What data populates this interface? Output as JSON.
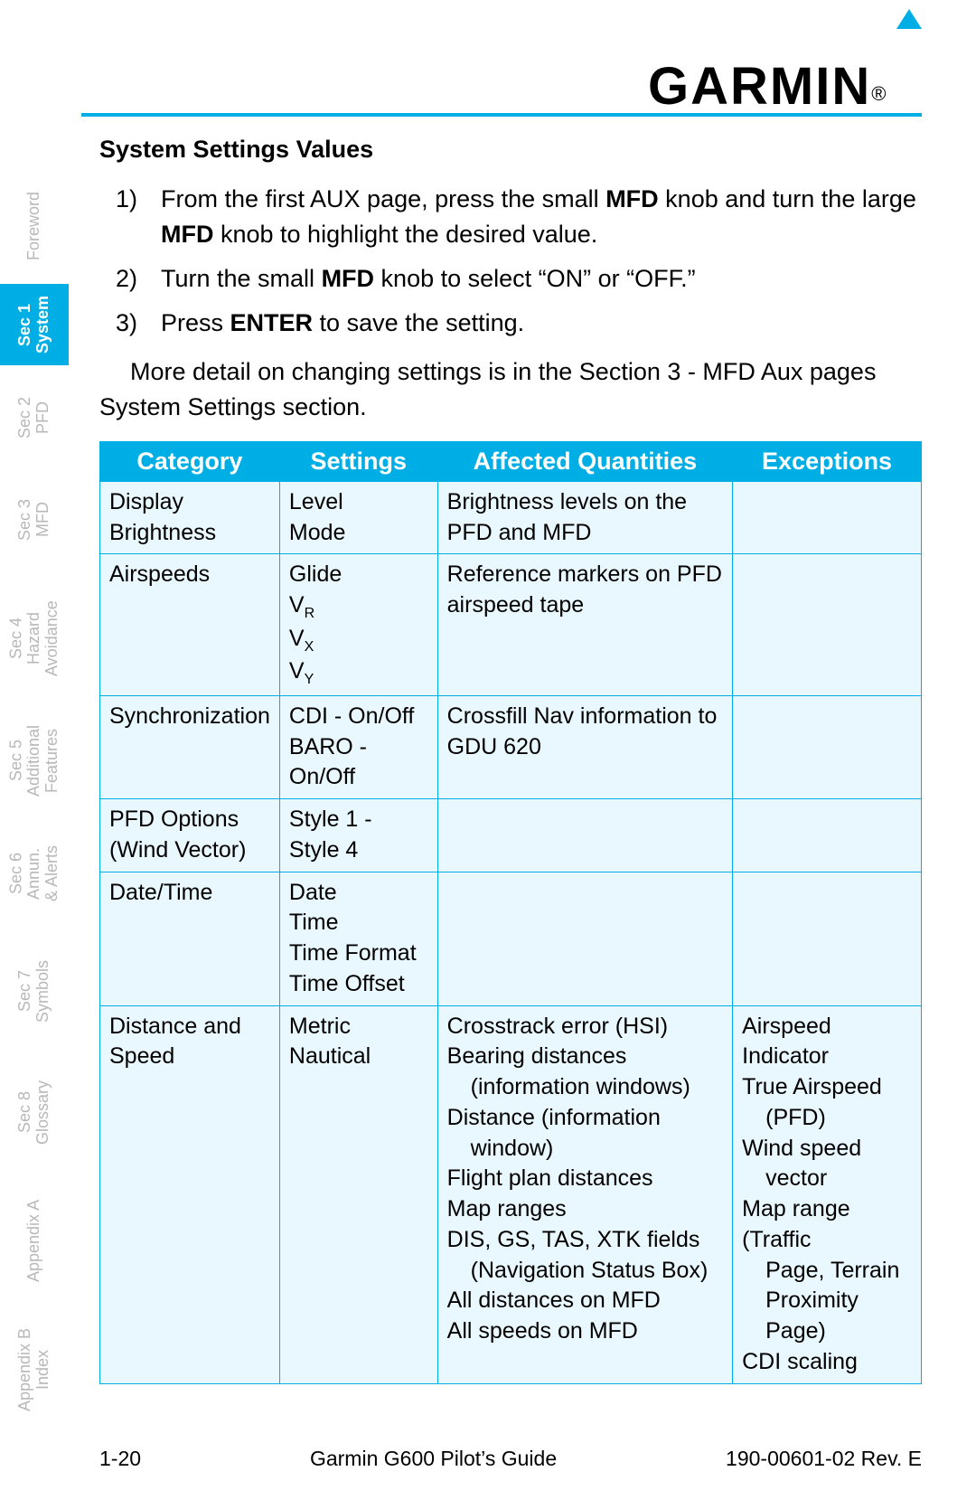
{
  "brand": {
    "name": "GARMIN",
    "registered": "®"
  },
  "title": "System Settings Values",
  "steps": [
    {
      "n": "1)",
      "text_parts": [
        "From the first AUX page, press the small ",
        "MFD",
        " knob and turn the large ",
        "MFD",
        " knob to highlight the desired value."
      ]
    },
    {
      "n": "2)",
      "text_parts": [
        "Turn the small ",
        "MFD",
        " knob to select “ON” or “OFF.”"
      ]
    },
    {
      "n": "3)",
      "text_parts": [
        "Press ",
        "ENTER",
        " to save the setting."
      ]
    }
  ],
  "paragraph": "More detail on changing settings is in the Section 3 - MFD Aux pages System Settings section.",
  "table": {
    "header_bg": "#00aee6",
    "header_fg": "#ffffff",
    "cell_bg": "#e9f7fe",
    "border_color": "#00aee6",
    "columns": [
      "Category",
      "Settings",
      "Affected Quantities",
      "Exceptions"
    ],
    "rows": [
      {
        "category": "Display Brightness",
        "settings": "Level\nMode",
        "affected": "Brightness levels on the PFD and MFD",
        "exceptions": ""
      },
      {
        "category": "Airspeeds",
        "settings_rich": [
          "Glide",
          [
            "V",
            "R"
          ],
          [
            "V",
            "X"
          ],
          [
            "V",
            "Y"
          ]
        ],
        "affected": "Reference markers on PFD airspeed tape",
        "exceptions": ""
      },
      {
        "category": "Synchronization",
        "settings": "CDI - On/Off\nBARO - On/Off",
        "affected": "Crossfill Nav information to GDU 620",
        "exceptions": ""
      },
      {
        "category": "PFD Options (Wind Vector)",
        "settings": "Style 1 - Style 4",
        "affected": "",
        "exceptions": ""
      },
      {
        "category": "Date/Time",
        "settings": "Date\nTime\nTime Format\nTime Offset",
        "affected": "",
        "exceptions": ""
      },
      {
        "category": "Distance and Speed",
        "settings": "Metric\nNautical",
        "affected_lines": [
          "Crosstrack error (HSI)",
          "Bearing distances",
          {
            "indent": "(information windows)"
          },
          "Distance (information",
          {
            "indent": "window)"
          },
          "Flight plan distances",
          "Map ranges",
          "DIS, GS, TAS, XTK fields",
          {
            "indent": "(Navigation Status Box)"
          },
          "All distances on MFD",
          "All speeds on MFD"
        ],
        "exceptions_lines": [
          "Airspeed Indicator",
          "True Airspeed",
          {
            "indent": "(PFD)"
          },
          "Wind speed",
          {
            "indent": "vector"
          },
          "Map range (Traffic",
          {
            "indent": "Page, Terrain"
          },
          {
            "indent": "Proximity Page)"
          },
          "CDI scaling"
        ]
      }
    ]
  },
  "sidebar_tabs": [
    {
      "key": "foreword",
      "lines": [
        "Foreword"
      ],
      "active": false,
      "cls": "tab-foreword"
    },
    {
      "key": "sec1",
      "lines": [
        "Sec 1",
        "System"
      ],
      "active": true,
      "cls": "tab-sec1"
    },
    {
      "key": "sec2",
      "lines": [
        "Sec 2",
        "PFD"
      ],
      "active": false,
      "cls": "tab-sec2"
    },
    {
      "key": "sec3",
      "lines": [
        "Sec 3",
        "MFD"
      ],
      "active": false,
      "cls": "tab-sec3"
    },
    {
      "key": "sec4",
      "lines": [
        "Sec 4",
        "Hazard",
        "Avoidance"
      ],
      "active": false,
      "cls": "tab-sec4"
    },
    {
      "key": "sec5",
      "lines": [
        "Sec 5",
        "Additional",
        "Features"
      ],
      "active": false,
      "cls": "tab-sec5"
    },
    {
      "key": "sec6",
      "lines": [
        "Sec 6",
        "Annun.",
        "& Alerts"
      ],
      "active": false,
      "cls": "tab-sec6"
    },
    {
      "key": "sec7",
      "lines": [
        "Sec 7",
        "Symbols"
      ],
      "active": false,
      "cls": "tab-sec7"
    },
    {
      "key": "sec8",
      "lines": [
        "Sec 8",
        "Glossary"
      ],
      "active": false,
      "cls": "tab-sec8"
    },
    {
      "key": "appa",
      "lines": [
        "Appendix A"
      ],
      "active": false,
      "cls": "tab-appa"
    },
    {
      "key": "appb",
      "lines": [
        "Appendix B",
        "Index"
      ],
      "active": false,
      "cls": "tab-appb"
    }
  ],
  "footer": {
    "page": "1-20",
    "center": "Garmin G600 Pilot’s Guide",
    "right": "190-00601-02  Rev. E"
  }
}
